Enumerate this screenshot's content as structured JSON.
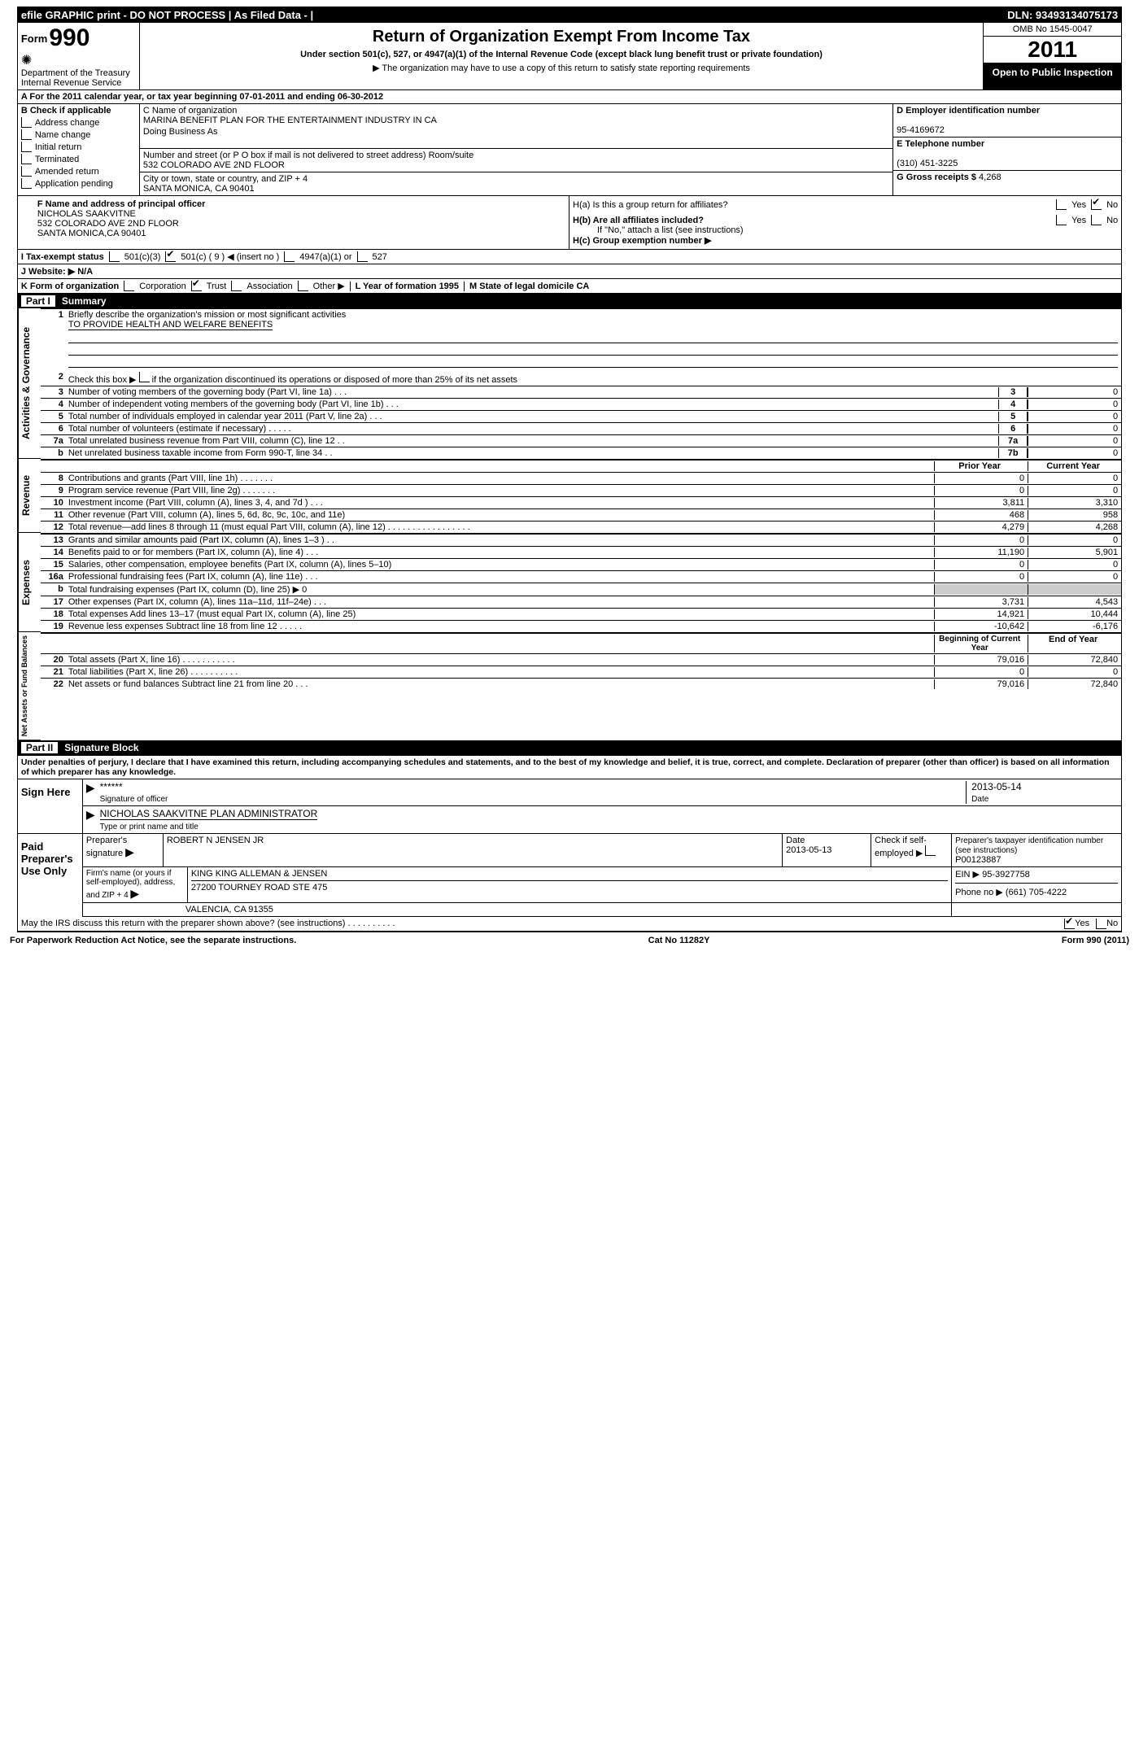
{
  "top_bar": {
    "left": "efile GRAPHIC print - DO NOT PROCESS  | As Filed Data -  |",
    "right": "DLN: 93493134075173"
  },
  "header": {
    "form_label": "Form",
    "form_number": "990",
    "dept": "Department of the Treasury",
    "irs": "Internal Revenue Service",
    "title": "Return of Organization Exempt From Income Tax",
    "subtitle": "Under section 501(c), 527, or 4947(a)(1) of the Internal Revenue Code (except black lung benefit trust or private foundation)",
    "note": "▶ The organization may have to use a copy of this return to satisfy state reporting requirements",
    "omb": "OMB No 1545-0047",
    "year": "2011",
    "inspection": "Open to Public Inspection"
  },
  "row_a": "A  For the 2011 calendar year, or tax year beginning 07-01-2011    and ending 06-30-2012",
  "section_b": {
    "b_label": "B Check if applicable",
    "checks": [
      "Address change",
      "Name change",
      "Initial return",
      "Terminated",
      "Amended return",
      "Application pending"
    ],
    "c_name_label": "C Name of organization",
    "c_name": "MARINA BENEFIT PLAN FOR THE ENTERTAINMENT INDUSTRY IN CA",
    "dba": "Doing Business As",
    "street_label": "Number and street (or P O  box if mail is not delivered to street address)  Room/suite",
    "street": "532 COLORADO AVE 2ND FLOOR",
    "city_label": "City or town, state or country, and ZIP + 4",
    "city": "SANTA MONICA, CA  90401",
    "d_label": "D Employer identification number",
    "d_value": "95-4169672",
    "e_label": "E Telephone number",
    "e_value": "(310) 451-3225",
    "g_label": "G Gross receipts $",
    "g_value": "4,268"
  },
  "section_fh": {
    "f_label": "F  Name and address of principal officer",
    "f_name": "NICHOLAS SAAKVITNE",
    "f_street": "532 COLORADO AVE 2ND FLOOR",
    "f_city": "SANTA MONICA,CA  90401",
    "ha": "H(a) Is this a group return for affiliates?",
    "hb": "H(b) Are all affiliates included?",
    "hb_note": "If \"No,\" attach a list  (see instructions)",
    "hc": "H(c)  Group exemption number ▶",
    "yes": "Yes",
    "no": "No"
  },
  "row_i": {
    "label": "I  Tax-exempt status",
    "opt1": "501(c)(3)",
    "opt2": "501(c) ( 9 ) ◀ (insert no )",
    "opt3": "4947(a)(1) or",
    "opt4": "527"
  },
  "row_j": "J  Website: ▶  N/A",
  "row_k": {
    "label": "K Form of organization",
    "opts": [
      "Corporation",
      "Trust",
      "Association",
      "Other ▶"
    ],
    "l": "L Year of formation  1995",
    "m": "M State of legal domicile  CA"
  },
  "part1": {
    "title": "Part I",
    "label": "Summary",
    "mission_label": "1   Briefly describe the organization's mission or most significant activities",
    "mission": "TO PROVIDE HEALTH AND WELFARE BENEFITS",
    "line2": "Check this box ▶      if the organization discontinued its operations or disposed of more than 25% of its net assets",
    "lines_gov": [
      {
        "n": "3",
        "d": "Number of voting members of the governing body (Part VI, line 1a)  .  .  .",
        "b": "3",
        "v": "0"
      },
      {
        "n": "4",
        "d": "Number of independent voting members of the governing body (Part VI, line 1b)  .  .  .",
        "b": "4",
        "v": "0"
      },
      {
        "n": "5",
        "d": "Total number of individuals employed in calendar year 2011 (Part V, line 2a)  .  .  .",
        "b": "5",
        "v": "0"
      },
      {
        "n": "6",
        "d": "Total number of volunteers (estimate if necessary)  .  .  .  .  .",
        "b": "6",
        "v": "0"
      },
      {
        "n": "7a",
        "d": "Total unrelated business revenue from Part VIII, column (C), line 12   .  .",
        "b": "7a",
        "v": "0"
      },
      {
        "n": "b",
        "d": "Net unrelated business taxable income from Form 990-T, line 34   .  .",
        "b": "7b",
        "v": "0"
      }
    ],
    "col_hdr_prior": "Prior Year",
    "col_hdr_current": "Current Year",
    "lines_rev": [
      {
        "n": "8",
        "d": "Contributions and grants (Part VIII, line 1h)  .  .  .  .  .  .  .",
        "p": "0",
        "c": "0"
      },
      {
        "n": "9",
        "d": "Program service revenue (Part VIII, line 2g)  .  .  .  .  .  .  .",
        "p": "0",
        "c": "0"
      },
      {
        "n": "10",
        "d": "Investment income (Part VIII, column (A), lines 3, 4, and 7d )  .  .  .",
        "p": "3,811",
        "c": "3,310"
      },
      {
        "n": "11",
        "d": "Other revenue (Part VIII, column (A), lines 5, 6d, 8c, 9c, 10c, and 11e)",
        "p": "468",
        "c": "958"
      },
      {
        "n": "12",
        "d": "Total revenue—add lines 8 through 11 (must equal Part VIII, column (A), line 12)  .  .  .  .  .  .  .  .  .  .  .  .  .  .  .  .  .",
        "p": "4,279",
        "c": "4,268"
      }
    ],
    "lines_exp": [
      {
        "n": "13",
        "d": "Grants and similar amounts paid (Part IX, column (A), lines 1–3 )  .  .",
        "p": "0",
        "c": "0"
      },
      {
        "n": "14",
        "d": "Benefits paid to or for members (Part IX, column (A), line 4)  .  .  .",
        "p": "11,190",
        "c": "5,901"
      },
      {
        "n": "15",
        "d": "Salaries, other compensation, employee benefits (Part IX, column (A), lines 5–10)",
        "p": "0",
        "c": "0"
      },
      {
        "n": "16a",
        "d": "Professional fundraising fees (Part IX, column (A), line 11e)  .  .  .",
        "p": "0",
        "c": "0"
      },
      {
        "n": "b",
        "d": "Total fundraising expenses (Part IX, column (D), line 25) ▶ 0",
        "p": "",
        "c": "",
        "blank": true
      },
      {
        "n": "17",
        "d": "Other expenses (Part IX, column (A), lines 11a–11d, 11f–24e)  .  .  .",
        "p": "3,731",
        "c": "4,543"
      },
      {
        "n": "18",
        "d": "Total expenses  Add lines 13–17 (must equal Part IX, column (A), line 25)",
        "p": "14,921",
        "c": "10,444"
      },
      {
        "n": "19",
        "d": "Revenue less expenses  Subtract line 18 from line 12  .  .  .  .  .",
        "p": "-10,642",
        "c": "-6,176"
      }
    ],
    "col_hdr_begin": "Beginning of Current Year",
    "col_hdr_end": "End of Year",
    "lines_net": [
      {
        "n": "20",
        "d": "Total assets (Part X, line 16)  .  .  .  .  .  .  .  .  .  .  .",
        "p": "79,016",
        "c": "72,840"
      },
      {
        "n": "21",
        "d": "Total liabilities (Part X, line 26)  .  .  .  .  .  .  .  .  .  .",
        "p": "0",
        "c": "0"
      },
      {
        "n": "22",
        "d": "Net assets or fund balances  Subtract line 21 from line 20  .  .  .",
        "p": "79,016",
        "c": "72,840"
      }
    ],
    "vert_gov": "Activities & Governance",
    "vert_rev": "Revenue",
    "vert_exp": "Expenses",
    "vert_net": "Net Assets or Fund Balances"
  },
  "part2": {
    "title": "Part II",
    "label": "Signature Block",
    "declaration": "Under penalties of perjury, I declare that I have examined this return, including accompanying schedules and statements, and to the best of my knowledge and belief, it is true, correct, and complete. Declaration of preparer (other than officer) is based on all information of which preparer has any knowledge.",
    "sign_here": "Sign Here",
    "sig_stars": "******",
    "sig_date": "2013-05-14",
    "sig_of_officer": "Signature of officer",
    "date_label": "Date",
    "officer_name": "NICHOLAS SAAKVITNE PLAN ADMINISTRATOR",
    "type_name": "Type or print name and title",
    "paid_label": "Paid Preparer's Use Only",
    "prep_sig_label": "Preparer's signature",
    "prep_name": "ROBERT N JENSEN JR",
    "prep_date": "2013-05-13",
    "self_emp": "Check if self-employed ▶",
    "ptin_label": "Preparer's taxpayer identification number (see instructions)",
    "ptin": "P00123887",
    "firm_label": "Firm's name (or yours if self-employed), address, and ZIP + 4",
    "firm_name": "KING KING ALLEMAN & JENSEN",
    "firm_addr1": "27200 TOURNEY ROAD STE 475",
    "firm_addr2": "VALENCIA, CA  91355",
    "ein_label": "EIN ▶",
    "ein": "95-3927758",
    "phone_label": "Phone no  ▶",
    "phone": "(661) 705-4222",
    "irs_discuss": "May the IRS discuss this return with the preparer shown above? (see instructions)  .  .  .  .  .  .  .  .  .  .",
    "yes": "Yes",
    "no": "No"
  },
  "footer": {
    "left": "For Paperwork Reduction Act Notice, see the separate instructions.",
    "center": "Cat No 11282Y",
    "right": "Form 990 (2011)"
  }
}
